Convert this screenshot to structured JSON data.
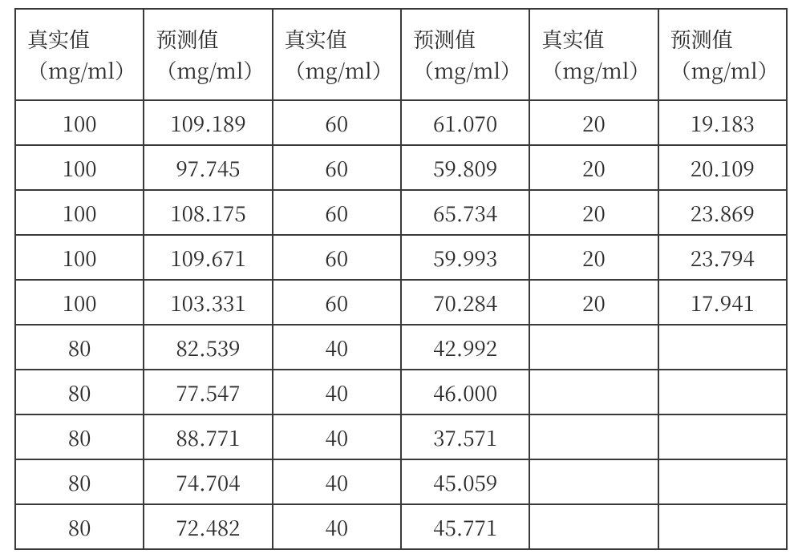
{
  "table": {
    "type": "table",
    "border_color": "#3a3a3a",
    "background_color": "#ffffff",
    "text_color": "#2b2b2b",
    "header_fontsize": 26,
    "cell_fontsize": 26,
    "header_line1": [
      "真实值",
      "预测值",
      "真实值",
      "预测值",
      "真实值",
      "预测值"
    ],
    "header_line2": [
      "（mg/ml）",
      "（mg/ml）",
      "（mg/ml）",
      "（mg/ml）",
      "（mg/ml）",
      "（mg/ml）"
    ],
    "rows": [
      [
        "100",
        "109.189",
        "60",
        "61.070",
        "20",
        "19.183"
      ],
      [
        "100",
        "97.745",
        "60",
        "59.809",
        "20",
        "20.109"
      ],
      [
        "100",
        "108.175",
        "60",
        "65.734",
        "20",
        "23.869"
      ],
      [
        "100",
        "109.671",
        "60",
        "59.993",
        "20",
        "23.794"
      ],
      [
        "100",
        "103.331",
        "60",
        "70.284",
        "20",
        "17.941"
      ],
      [
        "80",
        "82.539",
        "40",
        "42.992",
        "",
        ""
      ],
      [
        "80",
        "77.547",
        "40",
        "46.000",
        "",
        ""
      ],
      [
        "80",
        "88.771",
        "40",
        "37.571",
        "",
        ""
      ],
      [
        "80",
        "74.704",
        "40",
        "45.059",
        "",
        ""
      ],
      [
        "80",
        "72.482",
        "40",
        "45.771",
        "",
        ""
      ]
    ]
  }
}
